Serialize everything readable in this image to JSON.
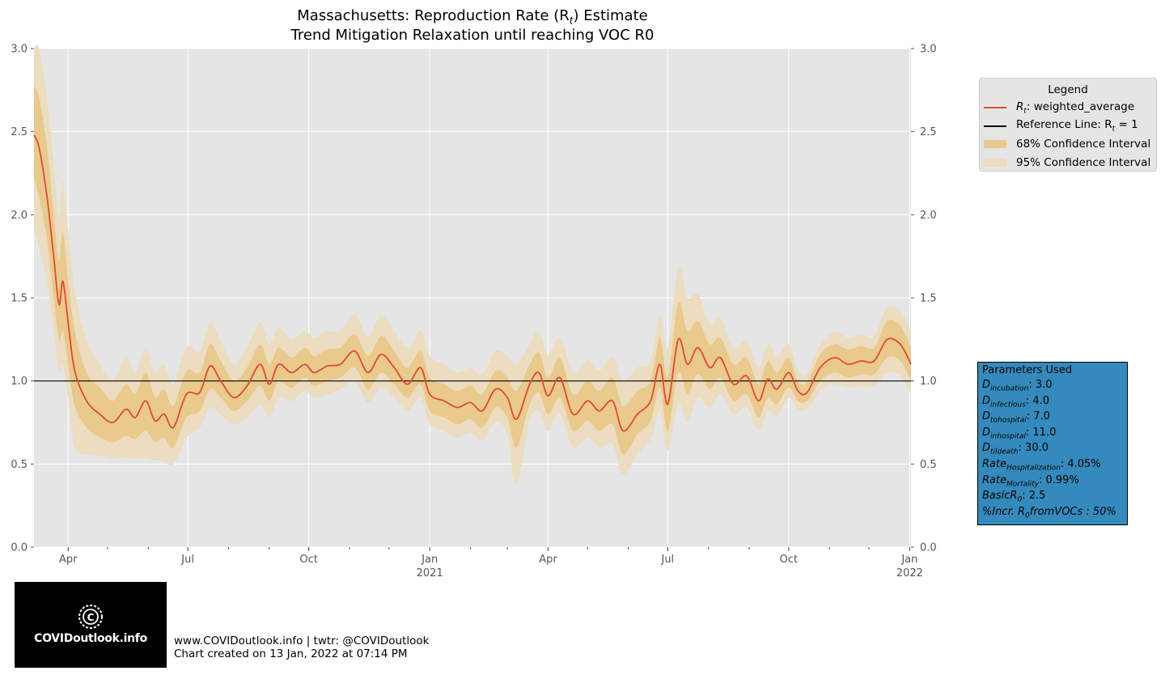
{
  "title_line1": "Massachusetts: Reproduction Rate (R",
  "title_sub": "t",
  "title_line1_end": ") Estimate",
  "title_line2": "Trend Mitigation Relaxation until reaching VOC R0",
  "colors": {
    "plot_bg": "#e5e5e5",
    "grid": "#ffffff",
    "rt_line": "#e24a33",
    "ci68": "#e9c98c",
    "ci95": "#ecdcc0",
    "reference": "#000000",
    "params_bg": "#348abd"
  },
  "legend": {
    "title": "Legend",
    "items": [
      {
        "prefix": "R",
        "sub": "t",
        "label": ": weighted_average"
      },
      {
        "prefix": "Reference Line: R",
        "sub": "t",
        "label": " = 1"
      },
      {
        "label": "68% Confidence Interval"
      },
      {
        "label": "95% Confidence Interval"
      }
    ]
  },
  "params": {
    "title": "Parameters Used",
    "rows": [
      {
        "base": "D",
        "sub": "incubation",
        "value": ": 3.0"
      },
      {
        "base": "D",
        "sub": "infectious",
        "value": ": 4.0"
      },
      {
        "base": "D",
        "sub": "tohospital",
        "value": ": 7.0"
      },
      {
        "base": "D",
        "sub": "inhospital",
        "value": ": 11.0"
      },
      {
        "base": "D",
        "sub": "tildeath",
        "value": ": 30.0"
      },
      {
        "base": "Rate",
        "sub": "Hospitalization",
        "value": ": 4.05%"
      },
      {
        "base": "Rate",
        "sub": "Mortality",
        "value": ": 0.99%"
      },
      {
        "base": "BasicR",
        "sub": "0",
        "value": ": 2.5"
      },
      {
        "base": "%Incr. R",
        "sub": "0",
        "value": "fromVOCs : 50%"
      }
    ]
  },
  "logo_text": "COVIDoutlook.info",
  "footer": {
    "line1": "www.COVIDoutlook.info | twtr: @COVIDoutlook",
    "line2": "Chart created on 13 Jan, 2022 at 07:14 PM"
  },
  "chart_data": {
    "type": "line",
    "ylim": [
      0,
      3
    ],
    "yticks": [
      0.0,
      0.5,
      1.0,
      1.5,
      2.0,
      2.5,
      3.0
    ],
    "ytick_labels": [
      "0.0",
      "0.5",
      "1.0",
      "1.5",
      "2.0",
      "2.5",
      "3.0"
    ],
    "xlim": [
      "2020-03-06",
      "2022-01-02"
    ],
    "xticks": [
      {
        "date": "2020-04-01",
        "label": "Apr",
        "year": ""
      },
      {
        "date": "2020-07-01",
        "label": "Jul",
        "year": ""
      },
      {
        "date": "2020-10-01",
        "label": "Oct",
        "year": ""
      },
      {
        "date": "2021-01-01",
        "label": "Jan",
        "year": "2021"
      },
      {
        "date": "2021-04-01",
        "label": "Apr",
        "year": ""
      },
      {
        "date": "2021-07-01",
        "label": "Jul",
        "year": ""
      },
      {
        "date": "2021-10-01",
        "label": "Oct",
        "year": ""
      },
      {
        "date": "2022-01-01",
        "label": "Jan",
        "year": "2022"
      }
    ],
    "reference_line": 1.0,
    "series": [
      {
        "name": "weighted_average",
        "points": [
          [
            "2020-03-06",
            2.48,
            2.22,
            2.78,
            1.92,
            3.1
          ],
          [
            "2020-03-10",
            2.4,
            2.1,
            2.7,
            1.8,
            3.0
          ],
          [
            "2020-03-16",
            2.1,
            1.85,
            2.4,
            1.6,
            2.7
          ],
          [
            "2020-03-21",
            1.75,
            1.5,
            2.0,
            1.3,
            2.3
          ],
          [
            "2020-03-25",
            1.46,
            1.25,
            1.72,
            1.05,
            2.0
          ],
          [
            "2020-03-28",
            1.6,
            1.3,
            1.9,
            1.1,
            2.2
          ],
          [
            "2020-04-01",
            1.35,
            1.1,
            1.6,
            0.9,
            1.9
          ],
          [
            "2020-04-06",
            1.06,
            0.85,
            1.3,
            0.6,
            1.55
          ],
          [
            "2020-04-15",
            0.88,
            0.72,
            1.05,
            0.56,
            1.25
          ],
          [
            "2020-04-25",
            0.8,
            0.66,
            0.96,
            0.55,
            1.1
          ],
          [
            "2020-05-05",
            0.75,
            0.63,
            0.88,
            0.53,
            1.0
          ],
          [
            "2020-05-15",
            0.83,
            0.67,
            0.98,
            0.54,
            1.15
          ],
          [
            "2020-05-22",
            0.78,
            0.65,
            0.92,
            0.53,
            1.05
          ],
          [
            "2020-05-30",
            0.88,
            0.7,
            1.05,
            0.54,
            1.2
          ],
          [
            "2020-06-06",
            0.76,
            0.63,
            0.9,
            0.52,
            1.05
          ],
          [
            "2020-06-13",
            0.8,
            0.66,
            0.95,
            0.52,
            1.1
          ],
          [
            "2020-06-20",
            0.72,
            0.6,
            0.85,
            0.5,
            0.98
          ],
          [
            "2020-06-30",
            0.92,
            0.78,
            1.06,
            0.66,
            1.2
          ],
          [
            "2020-07-10",
            0.93,
            0.82,
            1.05,
            0.72,
            1.18
          ],
          [
            "2020-07-18",
            1.09,
            0.95,
            1.22,
            0.84,
            1.35
          ],
          [
            "2020-07-26",
            1.0,
            0.9,
            1.12,
            0.8,
            1.24
          ],
          [
            "2020-08-05",
            0.9,
            0.82,
            1.0,
            0.74,
            1.1
          ],
          [
            "2020-08-15",
            0.97,
            0.88,
            1.08,
            0.78,
            1.2
          ],
          [
            "2020-08-25",
            1.1,
            0.97,
            1.22,
            0.86,
            1.35
          ],
          [
            "2020-09-01",
            0.98,
            0.88,
            1.1,
            0.78,
            1.22
          ],
          [
            "2020-09-08",
            1.1,
            1.0,
            1.2,
            0.9,
            1.32
          ],
          [
            "2020-09-18",
            1.05,
            0.96,
            1.14,
            0.88,
            1.25
          ],
          [
            "2020-09-28",
            1.1,
            1.02,
            1.2,
            0.94,
            1.3
          ],
          [
            "2020-10-05",
            1.05,
            0.97,
            1.15,
            0.9,
            1.26
          ],
          [
            "2020-10-15",
            1.09,
            1.0,
            1.19,
            0.92,
            1.3
          ],
          [
            "2020-10-25",
            1.1,
            1.02,
            1.2,
            0.95,
            1.3
          ],
          [
            "2020-11-05",
            1.18,
            1.08,
            1.28,
            1.0,
            1.4
          ],
          [
            "2020-11-15",
            1.05,
            0.95,
            1.15,
            0.87,
            1.27
          ],
          [
            "2020-11-25",
            1.16,
            1.05,
            1.27,
            0.96,
            1.39
          ],
          [
            "2020-12-05",
            1.08,
            0.98,
            1.18,
            0.9,
            1.3
          ],
          [
            "2020-12-15",
            0.98,
            0.9,
            1.08,
            0.82,
            1.2
          ],
          [
            "2020-12-25",
            1.08,
            0.98,
            1.18,
            0.9,
            1.3
          ],
          [
            "2021-01-01",
            0.92,
            0.82,
            1.02,
            0.74,
            1.15
          ],
          [
            "2021-01-12",
            0.88,
            0.78,
            0.98,
            0.7,
            1.1
          ],
          [
            "2021-01-22",
            0.84,
            0.74,
            0.94,
            0.66,
            1.05
          ],
          [
            "2021-02-01",
            0.87,
            0.77,
            0.97,
            0.69,
            1.08
          ],
          [
            "2021-02-10",
            0.82,
            0.72,
            0.92,
            0.64,
            1.04
          ],
          [
            "2021-02-20",
            0.95,
            0.84,
            1.06,
            0.75,
            1.18
          ],
          [
            "2021-03-01",
            0.9,
            0.78,
            1.02,
            0.68,
            1.15
          ],
          [
            "2021-03-08",
            0.77,
            0.6,
            0.94,
            0.37,
            1.1
          ],
          [
            "2021-03-18",
            0.98,
            0.86,
            1.1,
            0.76,
            1.22
          ],
          [
            "2021-03-25",
            1.05,
            0.93,
            1.17,
            0.82,
            1.3
          ],
          [
            "2021-04-01",
            0.91,
            0.8,
            1.02,
            0.7,
            1.15
          ],
          [
            "2021-04-10",
            1.02,
            0.9,
            1.14,
            0.8,
            1.26
          ],
          [
            "2021-04-20",
            0.8,
            0.7,
            0.92,
            0.6,
            1.05
          ],
          [
            "2021-05-01",
            0.88,
            0.76,
            1.0,
            0.66,
            1.12
          ],
          [
            "2021-05-10",
            0.82,
            0.7,
            0.94,
            0.6,
            1.06
          ],
          [
            "2021-05-20",
            0.88,
            0.74,
            1.02,
            0.62,
            1.15
          ],
          [
            "2021-05-28",
            0.7,
            0.56,
            0.85,
            0.44,
            1.0
          ],
          [
            "2021-06-08",
            0.8,
            0.68,
            0.94,
            0.56,
            1.08
          ],
          [
            "2021-06-18",
            0.88,
            0.76,
            1.0,
            0.65,
            1.12
          ],
          [
            "2021-06-25",
            1.1,
            0.96,
            1.26,
            0.82,
            1.4
          ],
          [
            "2021-07-01",
            0.86,
            0.7,
            1.02,
            0.58,
            1.2
          ],
          [
            "2021-07-09",
            1.25,
            1.05,
            1.47,
            0.86,
            1.68
          ],
          [
            "2021-07-16",
            1.1,
            0.92,
            1.3,
            0.75,
            1.5
          ],
          [
            "2021-07-24",
            1.2,
            1.04,
            1.36,
            0.9,
            1.52
          ],
          [
            "2021-08-02",
            1.08,
            0.95,
            1.22,
            0.84,
            1.35
          ],
          [
            "2021-08-10",
            1.14,
            1.02,
            1.26,
            0.92,
            1.38
          ],
          [
            "2021-08-20",
            0.98,
            0.88,
            1.1,
            0.8,
            1.2
          ],
          [
            "2021-08-30",
            1.03,
            0.92,
            1.14,
            0.84,
            1.24
          ],
          [
            "2021-09-08",
            0.88,
            0.78,
            0.98,
            0.7,
            1.08
          ],
          [
            "2021-09-15",
            1.01,
            0.9,
            1.12,
            0.82,
            1.22
          ],
          [
            "2021-09-22",
            0.95,
            0.86,
            1.05,
            0.79,
            1.15
          ],
          [
            "2021-10-01",
            1.05,
            0.96,
            1.14,
            0.9,
            1.22
          ],
          [
            "2021-10-08",
            0.94,
            0.88,
            1.0,
            0.83,
            1.06
          ],
          [
            "2021-10-15",
            0.93,
            0.88,
            0.99,
            0.83,
            1.04
          ],
          [
            "2021-10-25",
            1.08,
            1.0,
            1.16,
            0.94,
            1.22
          ],
          [
            "2021-11-05",
            1.14,
            1.05,
            1.22,
            0.98,
            1.3
          ],
          [
            "2021-11-15",
            1.1,
            1.02,
            1.19,
            0.96,
            1.26
          ],
          [
            "2021-11-25",
            1.12,
            1.04,
            1.21,
            0.97,
            1.28
          ],
          [
            "2021-12-05",
            1.12,
            1.04,
            1.2,
            0.97,
            1.27
          ],
          [
            "2021-12-15",
            1.25,
            1.14,
            1.36,
            1.05,
            1.44
          ],
          [
            "2021-12-25",
            1.22,
            1.12,
            1.33,
            1.03,
            1.42
          ],
          [
            "2022-01-02",
            1.1,
            1.0,
            1.2,
            0.92,
            1.3
          ]
        ]
      }
    ]
  }
}
